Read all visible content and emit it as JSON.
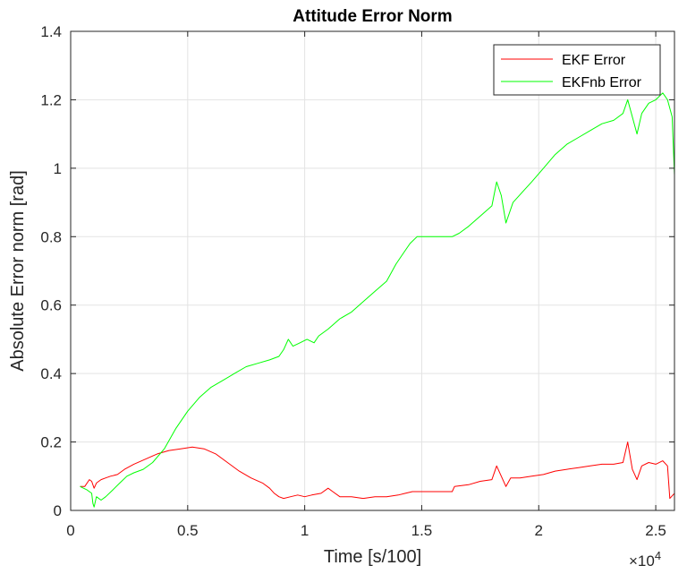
{
  "chart_data": {
    "type": "line",
    "title": "Attitude Error Norm",
    "xlabel": "Time [s/100]",
    "ylabel": "Absolute Error norm [rad]",
    "x_exponent_label": {
      "times": "×10",
      "power": "4"
    },
    "xlim": [
      0,
      25800
    ],
    "ylim": [
      0,
      1.4
    ],
    "xticks": [
      0,
      5000,
      10000,
      15000,
      20000,
      25000
    ],
    "xtick_labels": [
      "0",
      "0.5",
      "1",
      "1.5",
      "2",
      "2.5"
    ],
    "yticks": [
      0,
      0.2,
      0.4,
      0.6,
      0.8,
      1.0,
      1.2,
      1.4
    ],
    "ytick_labels": [
      "0",
      "0.2",
      "0.4",
      "0.6",
      "0.8",
      "1",
      "1.2",
      "1.4"
    ],
    "grid": true,
    "legend_position": "top-right",
    "colors": {
      "ekf": "#ff0000",
      "ekfnb": "#00ff00"
    },
    "series": [
      {
        "name": "EKF Error",
        "color": "#ff0000",
        "points": [
          [
            400,
            0.07
          ],
          [
            600,
            0.07
          ],
          [
            800,
            0.09
          ],
          [
            900,
            0.085
          ],
          [
            1000,
            0.065
          ],
          [
            1100,
            0.08
          ],
          [
            1300,
            0.09
          ],
          [
            1500,
            0.095
          ],
          [
            1700,
            0.1
          ],
          [
            2000,
            0.105
          ],
          [
            2300,
            0.12
          ],
          [
            2700,
            0.135
          ],
          [
            3200,
            0.15
          ],
          [
            3700,
            0.165
          ],
          [
            4200,
            0.175
          ],
          [
            4700,
            0.18
          ],
          [
            5200,
            0.185
          ],
          [
            5700,
            0.18
          ],
          [
            6200,
            0.165
          ],
          [
            6700,
            0.14
          ],
          [
            7200,
            0.115
          ],
          [
            7700,
            0.095
          ],
          [
            8200,
            0.08
          ],
          [
            8500,
            0.065
          ],
          [
            8700,
            0.05
          ],
          [
            8900,
            0.04
          ],
          [
            9100,
            0.035
          ],
          [
            9400,
            0.04
          ],
          [
            9700,
            0.045
          ],
          [
            10000,
            0.04
          ],
          [
            10300,
            0.045
          ],
          [
            10700,
            0.05
          ],
          [
            11000,
            0.065
          ],
          [
            11200,
            0.055
          ],
          [
            11500,
            0.04
          ],
          [
            12000,
            0.04
          ],
          [
            12500,
            0.035
          ],
          [
            13000,
            0.04
          ],
          [
            13500,
            0.04
          ],
          [
            14000,
            0.045
          ],
          [
            14300,
            0.05
          ],
          [
            14600,
            0.055
          ],
          [
            15500,
            0.055
          ],
          [
            16300,
            0.055
          ],
          [
            16400,
            0.07
          ],
          [
            17000,
            0.075
          ],
          [
            17500,
            0.085
          ],
          [
            18000,
            0.09
          ],
          [
            18200,
            0.13
          ],
          [
            18400,
            0.1
          ],
          [
            18600,
            0.07
          ],
          [
            18800,
            0.095
          ],
          [
            19200,
            0.095
          ],
          [
            19700,
            0.1
          ],
          [
            20200,
            0.105
          ],
          [
            20700,
            0.115
          ],
          [
            21200,
            0.12
          ],
          [
            21700,
            0.125
          ],
          [
            22200,
            0.13
          ],
          [
            22700,
            0.135
          ],
          [
            23200,
            0.135
          ],
          [
            23600,
            0.14
          ],
          [
            23800,
            0.2
          ],
          [
            24000,
            0.12
          ],
          [
            24200,
            0.09
          ],
          [
            24400,
            0.13
          ],
          [
            24700,
            0.14
          ],
          [
            25000,
            0.135
          ],
          [
            25300,
            0.145
          ],
          [
            25500,
            0.13
          ],
          [
            25600,
            0.035
          ],
          [
            25800,
            0.05
          ]
        ]
      },
      {
        "name": "EKFnb Error",
        "color": "#00ff00",
        "points": [
          [
            400,
            0.07
          ],
          [
            700,
            0.06
          ],
          [
            900,
            0.05
          ],
          [
            950,
            0.02
          ],
          [
            1000,
            0.01
          ],
          [
            1100,
            0.04
          ],
          [
            1300,
            0.03
          ],
          [
            1500,
            0.04
          ],
          [
            1800,
            0.06
          ],
          [
            2100,
            0.08
          ],
          [
            2400,
            0.1
          ],
          [
            2700,
            0.11
          ],
          [
            3100,
            0.12
          ],
          [
            3500,
            0.14
          ],
          [
            4000,
            0.18
          ],
          [
            4500,
            0.24
          ],
          [
            5000,
            0.29
          ],
          [
            5500,
            0.33
          ],
          [
            6000,
            0.36
          ],
          [
            6500,
            0.38
          ],
          [
            7000,
            0.4
          ],
          [
            7500,
            0.42
          ],
          [
            8000,
            0.43
          ],
          [
            8500,
            0.44
          ],
          [
            8900,
            0.45
          ],
          [
            9100,
            0.47
          ],
          [
            9300,
            0.5
          ],
          [
            9500,
            0.48
          ],
          [
            9800,
            0.49
          ],
          [
            10100,
            0.5
          ],
          [
            10400,
            0.49
          ],
          [
            10600,
            0.51
          ],
          [
            11000,
            0.53
          ],
          [
            11500,
            0.56
          ],
          [
            12000,
            0.58
          ],
          [
            12500,
            0.61
          ],
          [
            13000,
            0.64
          ],
          [
            13500,
            0.67
          ],
          [
            13900,
            0.72
          ],
          [
            14200,
            0.75
          ],
          [
            14500,
            0.78
          ],
          [
            14800,
            0.8
          ],
          [
            15000,
            0.8
          ],
          [
            16000,
            0.8
          ],
          [
            16300,
            0.8
          ],
          [
            16600,
            0.81
          ],
          [
            17000,
            0.83
          ],
          [
            17500,
            0.86
          ],
          [
            18000,
            0.89
          ],
          [
            18200,
            0.96
          ],
          [
            18400,
            0.92
          ],
          [
            18600,
            0.84
          ],
          [
            18900,
            0.9
          ],
          [
            19300,
            0.93
          ],
          [
            19700,
            0.96
          ],
          [
            20200,
            1.0
          ],
          [
            20700,
            1.04
          ],
          [
            21200,
            1.07
          ],
          [
            21700,
            1.09
          ],
          [
            22200,
            1.11
          ],
          [
            22700,
            1.13
          ],
          [
            23200,
            1.14
          ],
          [
            23600,
            1.16
          ],
          [
            23800,
            1.2
          ],
          [
            24000,
            1.15
          ],
          [
            24200,
            1.1
          ],
          [
            24400,
            1.16
          ],
          [
            24700,
            1.19
          ],
          [
            25000,
            1.2
          ],
          [
            25300,
            1.22
          ],
          [
            25500,
            1.2
          ],
          [
            25700,
            1.15
          ],
          [
            25800,
            0.98
          ]
        ]
      }
    ]
  }
}
